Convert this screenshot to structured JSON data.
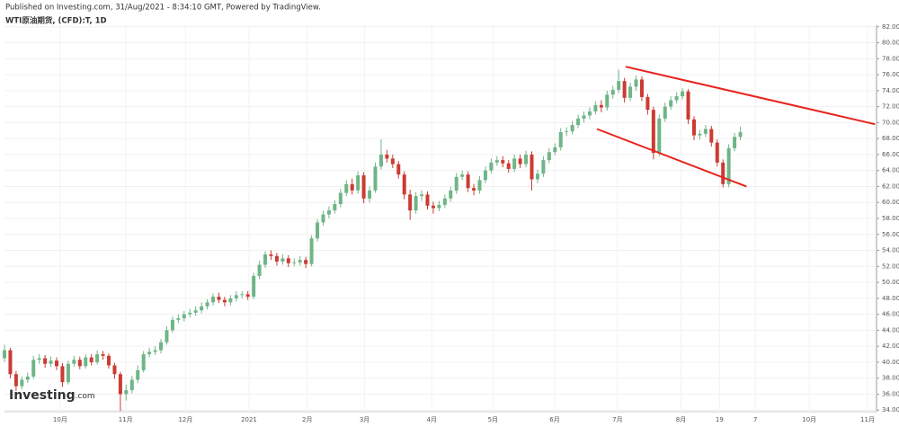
{
  "header": {
    "published": "Published on Investing.com, 31/Aug/2021 - 8:34:10 GMT, Powered by TradingView.",
    "symbol": "WTI原油期货, (CFD):T, 1D"
  },
  "logo": {
    "name": "Investing",
    "suffix": ".com"
  },
  "chart_data": {
    "type": "candlestick",
    "up_color": "#6fb587",
    "down_color": "#cc3b33",
    "grid": true,
    "xlim": [
      0,
      301
    ],
    "ylim": [
      33.8,
      82.2
    ],
    "xticks": [
      {
        "value": 19.2,
        "label": "10月"
      },
      {
        "value": 41.8,
        "label": "11月"
      },
      {
        "value": 62.5,
        "label": "12月"
      },
      {
        "value": 84.4,
        "label": "2021"
      },
      {
        "value": 104.5,
        "label": "2月"
      },
      {
        "value": 124.3,
        "label": "3月"
      },
      {
        "value": 147.5,
        "label": "4月"
      },
      {
        "value": 168.6,
        "label": "5月"
      },
      {
        "value": 189.9,
        "label": "6月"
      },
      {
        "value": 211.6,
        "label": "7月"
      },
      {
        "value": 233.5,
        "label": "8月"
      },
      {
        "value": 246.8,
        "label": "19"
      },
      {
        "value": 259.2,
        "label": "7"
      },
      {
        "value": 277.8,
        "label": "10月"
      },
      {
        "value": 297.9,
        "label": "11月"
      }
    ],
    "yticks": [
      {
        "value": 34,
        "label": "34.00"
      },
      {
        "value": 36,
        "label": "36.00"
      },
      {
        "value": 38,
        "label": "38.00"
      },
      {
        "value": 40,
        "label": "40.00"
      },
      {
        "value": 42,
        "label": "42.00"
      },
      {
        "value": 44,
        "label": "44.00"
      },
      {
        "value": 46,
        "label": "46.00"
      },
      {
        "value": 48,
        "label": "48.00"
      },
      {
        "value": 50,
        "label": "50.00"
      },
      {
        "value": 52,
        "label": "52.00"
      },
      {
        "value": 54,
        "label": "54.00"
      },
      {
        "value": 56,
        "label": "56.00"
      },
      {
        "value": 58,
        "label": "58.00"
      },
      {
        "value": 60,
        "label": "60.00"
      },
      {
        "value": 62,
        "label": "62.00"
      },
      {
        "value": 64,
        "label": "64.00"
      },
      {
        "value": 66,
        "label": "66.00"
      },
      {
        "value": 68,
        "label": "68.00"
      },
      {
        "value": 70,
        "label": "70.00"
      },
      {
        "value": 72,
        "label": "72.00"
      },
      {
        "value": 74,
        "label": "74.00"
      },
      {
        "value": 76,
        "label": "76.00"
      },
      {
        "value": 78,
        "label": "78.00"
      },
      {
        "value": 80,
        "label": "80.00"
      },
      {
        "value": 82,
        "label": "82.00"
      }
    ],
    "x": [
      0,
      2,
      4,
      6,
      8,
      10,
      12,
      14,
      16,
      18,
      20,
      22,
      24,
      26,
      28,
      30,
      32,
      34,
      36,
      38,
      40,
      42,
      44,
      46,
      48,
      50,
      52,
      54,
      56,
      58,
      60,
      62,
      64,
      66,
      68,
      70,
      72,
      74,
      76,
      78,
      80,
      82,
      84,
      86,
      88,
      90,
      92,
      94,
      96,
      98,
      100,
      102,
      104,
      106,
      108,
      110,
      112,
      114,
      116,
      118,
      120,
      122,
      124,
      126,
      128,
      130,
      132,
      134,
      136,
      138,
      140,
      142,
      144,
      146,
      148,
      150,
      152,
      154,
      156,
      158,
      160,
      162,
      164,
      166,
      168,
      170,
      172,
      174,
      176,
      178,
      180,
      182,
      184,
      186,
      188,
      190,
      192,
      194,
      196,
      198,
      200,
      202,
      204,
      206,
      208,
      210,
      212,
      214,
      216,
      218,
      220,
      222,
      224,
      226,
      228,
      230,
      232,
      234,
      236,
      238,
      240,
      242,
      244,
      246,
      248,
      250,
      252,
      254
    ],
    "open": [
      40.5,
      41.5,
      38.5,
      37,
      37.8,
      38.2,
      40.3,
      40.5,
      39.8,
      40.2,
      39.5,
      37.5,
      39.8,
      40.3,
      39.5,
      40.6,
      40,
      41,
      40.8,
      39.6,
      38.5,
      36,
      36.5,
      37.8,
      39,
      41,
      41.3,
      41.5,
      42.5,
      44,
      45.3,
      45.5,
      46,
      46.2,
      46.5,
      47,
      47.5,
      48.2,
      47.8,
      47.5,
      48,
      48.4,
      48.5,
      48.2,
      50.8,
      52.2,
      53.5,
      53.3,
      52.6,
      53,
      52.4,
      52.5,
      52.8,
      52.3,
      55.5,
      57.5,
      58.5,
      59,
      59.8,
      61.2,
      62.3,
      61.5,
      63.4,
      60.5,
      61.5,
      64.5,
      66,
      65.5,
      64.8,
      63.5,
      61,
      59,
      60.8,
      61,
      59.6,
      59.3,
      59.7,
      60.5,
      61.5,
      63.2,
      63.5,
      61.8,
      61.5,
      62.8,
      64,
      65,
      65.3,
      64.9,
      64.2,
      65.5,
      64.8,
      66,
      62.9,
      63.6,
      65.3,
      66.3,
      66.9,
      68.8,
      68.9,
      69.7,
      70.5,
      70.9,
      71.4,
      72.2,
      71.9,
      73.5,
      74.1,
      75.2,
      73.1,
      74.5,
      75.4,
      73.2,
      71.6,
      66.2,
      70.5,
      72,
      72.8,
      73.3,
      73.9,
      70.4,
      68.4,
      68.6,
      69.2,
      67.5,
      65,
      62.3,
      66.8,
      68.2
    ],
    "high": [
      42.2,
      41.8,
      38.9,
      38.2,
      38.7,
      40.8,
      41.0,
      40.9,
      40.7,
      40.6,
      39.9,
      40.2,
      40.8,
      40.7,
      41.0,
      41.0,
      41.5,
      41.4,
      41.1,
      39.9,
      38.8,
      37.2,
      38.3,
      39.6,
      41.4,
      41.8,
      42.0,
      42.9,
      44.5,
      45.7,
      46.0,
      46.4,
      46.7,
      47.0,
      47.5,
      47.9,
      48.6,
      48.7,
      48.2,
      48.4,
      48.9,
      48.9,
      48.9,
      51.2,
      52.7,
      53.9,
      54.0,
      53.7,
      53.5,
      53.4,
      53.0,
      53.3,
      53.2,
      55.9,
      57.9,
      59.0,
      59.5,
      60.3,
      61.7,
      62.8,
      63.0,
      63.9,
      63.8,
      62.0,
      65.0,
      67.9,
      66.6,
      66.0,
      65.2,
      63.9,
      61.6,
      61.3,
      61.5,
      61.4,
      60.1,
      60.2,
      61.0,
      62.0,
      63.7,
      64.0,
      63.9,
      62.3,
      63.3,
      64.5,
      65.5,
      65.8,
      65.8,
      65.3,
      66.0,
      66.0,
      66.5,
      66.4,
      64.1,
      65.8,
      66.8,
      67.4,
      69.3,
      69.4,
      70.2,
      71.0,
      71.4,
      71.9,
      72.7,
      72.8,
      74.0,
      74.6,
      76.6,
      75.6,
      75.0,
      75.9,
      75.8,
      73.6,
      72.0,
      71.0,
      72.5,
      73.3,
      73.8,
      74.3,
      74.2,
      70.8,
      69.1,
      69.7,
      69.6,
      67.9,
      65.4,
      67.3,
      68.7,
      69.5
    ],
    "low": [
      40.0,
      38.0,
      36.4,
      36.6,
      37.4,
      37.9,
      39.8,
      39.3,
      39.4,
      39.0,
      36.9,
      37.2,
      39.4,
      39.1,
      39.2,
      39.6,
      39.7,
      40.3,
      39.2,
      37.9,
      33.9,
      35.2,
      36.1,
      37.4,
      38.7,
      40.6,
      40.9,
      41.1,
      42.2,
      43.7,
      44.9,
      45.1,
      45.6,
      45.8,
      46.1,
      46.6,
      47.1,
      47.4,
      47.0,
      47.1,
      47.6,
      48.0,
      47.8,
      47.9,
      50.4,
      51.8,
      52.8,
      52.1,
      52.2,
      51.9,
      52.0,
      52.1,
      51.8,
      52.0,
      55.1,
      57.1,
      58.0,
      58.6,
      59.4,
      60.8,
      61.0,
      61.1,
      59.9,
      60.0,
      61.2,
      64.1,
      65.0,
      64.3,
      63.0,
      60.4,
      57.8,
      58.6,
      60.2,
      59.1,
      58.6,
      58.9,
      59.3,
      60.1,
      61.1,
      62.8,
      61.3,
      60.9,
      61.1,
      62.4,
      63.6,
      64.6,
      64.4,
      63.7,
      63.8,
      64.3,
      64.4,
      61.5,
      62.4,
      63.2,
      64.9,
      65.9,
      66.5,
      68.3,
      68.5,
      69.3,
      70.0,
      70.4,
      71.0,
      71.3,
      71.5,
      73.0,
      73.7,
      72.5,
      72.7,
      74.0,
      72.7,
      71.0,
      65.4,
      65.8,
      70.1,
      71.6,
      72.4,
      72.9,
      69.8,
      67.8,
      67.9,
      68.2,
      67.0,
      64.5,
      61.9,
      61.9,
      66.4,
      67.8
    ],
    "close": [
      41.5,
      38.5,
      37,
      37.8,
      38.2,
      40.3,
      40.5,
      39.8,
      40.2,
      39.5,
      37.5,
      39.8,
      40.3,
      39.5,
      40.6,
      40,
      41,
      40.8,
      39.6,
      38.5,
      36,
      36.5,
      37.8,
      39,
      41,
      41.3,
      41.5,
      42.5,
      44,
      45.3,
      45.5,
      46,
      46.2,
      46.5,
      47,
      47.5,
      48.2,
      47.8,
      47.5,
      48,
      48.4,
      48.5,
      48.2,
      50.8,
      52.2,
      53.5,
      53.3,
      52.6,
      53,
      52.4,
      52.5,
      52.8,
      52.3,
      55.5,
      57.5,
      58.5,
      59,
      59.8,
      61.2,
      62.3,
      61.5,
      63.4,
      60.5,
      61.5,
      64.5,
      66,
      65.5,
      64.8,
      63.5,
      61,
      59,
      60.8,
      61,
      59.6,
      59.3,
      59.7,
      60.5,
      61.5,
      63.2,
      63.5,
      61.8,
      61.5,
      62.8,
      64,
      65,
      65.3,
      64.9,
      64.2,
      65.5,
      64.8,
      66,
      62.9,
      63.6,
      65.3,
      66.3,
      66.9,
      68.8,
      68.9,
      69.7,
      70.5,
      70.9,
      71.4,
      72.2,
      71.9,
      73.5,
      74.1,
      75.2,
      73.1,
      74.5,
      75.4,
      73.2,
      71.6,
      66.2,
      70.5,
      72,
      72.8,
      73.3,
      73.9,
      70.4,
      68.4,
      68.6,
      69.2,
      67.5,
      65,
      62.3,
      66.8,
      68.2,
      68.8
    ],
    "trend_lines": {
      "color": "#e8231d",
      "lines": [
        {
          "x": [
            214.4,
            300.5
          ],
          "y": [
            77,
            69.8
          ]
        },
        {
          "x": [
            204.5,
            256.1
          ],
          "y": [
            69.2,
            62
          ]
        }
      ]
    }
  }
}
